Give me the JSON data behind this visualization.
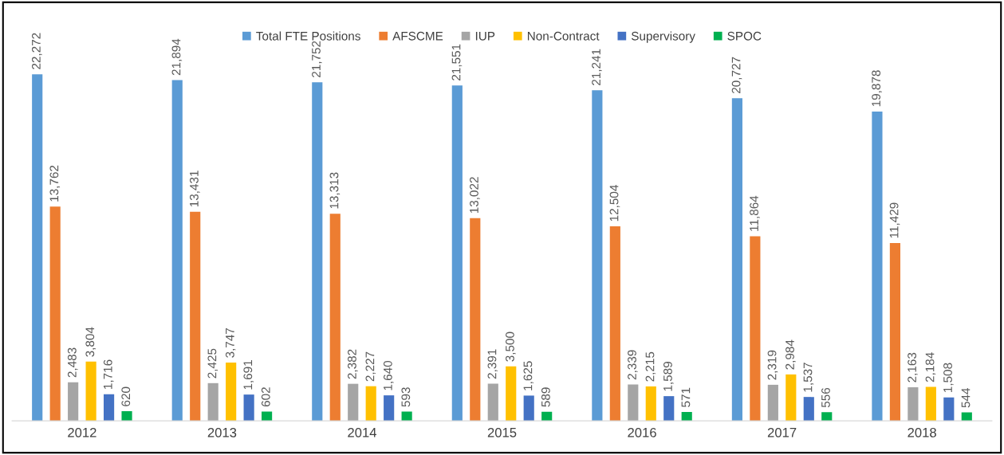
{
  "chart_data": {
    "type": "bar",
    "categories": [
      "2012",
      "2013",
      "2014",
      "2015",
      "2016",
      "2017",
      "2018"
    ],
    "series": [
      {
        "name": "Total FTE Positions",
        "color": "#5b9bd5",
        "values": [
          22272,
          21894,
          21752,
          21551,
          21241,
          20727,
          19878
        ],
        "value_labels": [
          "22,272",
          "21,894",
          "21,752",
          "21,551",
          "21,241",
          "20,727",
          "19,878"
        ]
      },
      {
        "name": "AFSCME",
        "color": "#ed7d31",
        "values": [
          13762,
          13431,
          13313,
          13022,
          12504,
          11864,
          11429
        ],
        "value_labels": [
          "13,762",
          "13,431",
          "13,313",
          "13,022",
          "12,504",
          "11,864",
          "11,429"
        ]
      },
      {
        "name": "IUP",
        "color": "#a5a5a5",
        "values": [
          2483,
          2425,
          2382,
          2391,
          2339,
          2319,
          2163
        ],
        "value_labels": [
          "2,483",
          "2,425",
          "2,382",
          "2,391",
          "2,339",
          "2,319",
          "2,163"
        ]
      },
      {
        "name": "Non-Contract",
        "color": "#ffc000",
        "values": [
          3804,
          3747,
          2227,
          3500,
          2215,
          2984,
          2184
        ],
        "value_labels": [
          "3,804",
          "3,747",
          "2,227",
          "3,500",
          "2,215",
          "2,984",
          "2,184"
        ]
      },
      {
        "name": "Supervisory",
        "color": "#4472c4",
        "values": [
          1716,
          1691,
          1640,
          1625,
          1589,
          1537,
          1508
        ],
        "value_labels": [
          "1,716",
          "1,691",
          "1,640",
          "1,625",
          "1,589",
          "1,537",
          "1,508"
        ]
      },
      {
        "name": "SPOC",
        "color": "#00b050",
        "values": [
          620,
          602,
          593,
          589,
          571,
          556,
          544
        ],
        "value_labels": [
          "620",
          "602",
          "593",
          "589",
          "571",
          "556",
          "544"
        ]
      }
    ],
    "legend": "top",
    "grid": false
  }
}
